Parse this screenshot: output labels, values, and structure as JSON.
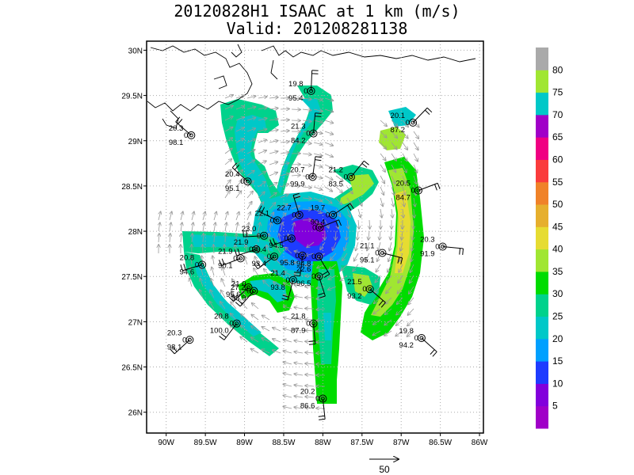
{
  "title_line1": "20120828H1 ISAAC at 1 km (m/s)",
  "title_line2": "Valid: 201208281138",
  "axes": {
    "x_ticks": [
      "90W",
      "89.5W",
      "89W",
      "88.5W",
      "88W",
      "87.5W",
      "87W",
      "86.5W",
      "86W"
    ],
    "x_values": [
      -90,
      -89.5,
      -89,
      -88.5,
      -88,
      -87.5,
      -87,
      -86.5,
      -86
    ],
    "y_ticks": [
      "30N",
      "29.5N",
      "29N",
      "28.5N",
      "28N",
      "27.5N",
      "27N",
      "26.5N",
      "26N"
    ],
    "y_values": [
      30,
      29.5,
      29,
      28.5,
      28,
      27.5,
      27,
      26.5,
      26
    ],
    "lon_range": [
      -90.25,
      -85.95
    ],
    "lat_range": [
      25.77,
      30.1
    ],
    "grid": "dotted"
  },
  "colorbar": {
    "labels": [
      "5",
      "10",
      "15",
      "20",
      "25",
      "30",
      "35",
      "40",
      "45",
      "50",
      "55",
      "60",
      "65",
      "70",
      "75",
      "80"
    ],
    "colors": [
      "#a000c8",
      "#8200dc",
      "#1e3cff",
      "#00a0ff",
      "#00c8c8",
      "#00d28c",
      "#00dc00",
      "#a0e632",
      "#e6dc32",
      "#e6af2d",
      "#f08228",
      "#fa3c3c",
      "#f00082",
      "#a000c8",
      "#00c8c8",
      "#a0e632",
      "#aaaaaa"
    ]
  },
  "reference_vector": {
    "label": "50"
  },
  "stations": [
    {
      "lon": -88.15,
      "lat": 29.55,
      "top": "19.8",
      "mid": "0",
      "bot": "95.4"
    },
    {
      "lon": -88.12,
      "lat": 29.08,
      "top": "21.3",
      "mid": "0",
      "bot": "84.2"
    },
    {
      "lon": -89.68,
      "lat": 29.06,
      "top": "20.3",
      "mid": "0",
      "bot": "98.1"
    },
    {
      "lon": -86.85,
      "lat": 29.2,
      "top": "20.1",
      "mid": "0",
      "bot": "87.2"
    },
    {
      "lon": -88.13,
      "lat": 28.6,
      "top": "20.7",
      "mid": "0",
      "bot": "99.9"
    },
    {
      "lon": -87.64,
      "lat": 28.6,
      "top": "21.2",
      "mid": "0",
      "bot": "83.5"
    },
    {
      "lon": -88.96,
      "lat": 28.55,
      "top": "20.4",
      "mid": "0",
      "bot": "95.1"
    },
    {
      "lon": -86.78,
      "lat": 28.45,
      "top": "20.5",
      "mid": "0",
      "bot": "84.7"
    },
    {
      "lon": -88.3,
      "lat": 28.18,
      "top": "22.7",
      "mid": "0",
      "bot": ""
    },
    {
      "lon": -87.87,
      "lat": 28.18,
      "top": "19.7",
      "mid": "0",
      "bot": "90.4"
    },
    {
      "lon": -88.58,
      "lat": 28.12,
      "top": "22.1",
      "mid": "0",
      "bot": ""
    },
    {
      "lon": -88.04,
      "lat": 28.04,
      "top": "",
      "mid": "0",
      "bot": ""
    },
    {
      "lon": -88.75,
      "lat": 27.95,
      "top": "23.0",
      "mid": "0",
      "bot": ""
    },
    {
      "lon": -88.4,
      "lat": 27.92,
      "top": "",
      "mid": "0",
      "bot": "94.5"
    },
    {
      "lon": -88.85,
      "lat": 27.8,
      "top": "21.9",
      "mid": "0",
      "bot": ""
    },
    {
      "lon": -89.05,
      "lat": 27.7,
      "top": "21.9",
      "mid": "0",
      "bot": "90.1"
    },
    {
      "lon": -88.62,
      "lat": 27.72,
      "top": "20.4",
      "mid": "0",
      "bot": "93.4"
    },
    {
      "lon": -88.26,
      "lat": 27.73,
      "top": "",
      "mid": "0",
      "bot": "95.8"
    },
    {
      "lon": -88.05,
      "lat": 27.72,
      "top": "",
      "mid": "0",
      "bot": "94.8"
    },
    {
      "lon": -87.24,
      "lat": 27.76,
      "top": "21.1",
      "mid": "0",
      "bot": "95.1"
    },
    {
      "lon": -86.47,
      "lat": 27.83,
      "top": "20.3",
      "mid": "0",
      "bot": "91.9"
    },
    {
      "lon": -89.54,
      "lat": 27.63,
      "top": "20.8",
      "mid": "0",
      "bot": "94.6"
    },
    {
      "lon": -88.38,
      "lat": 27.46,
      "top": "21.4",
      "mid": "0",
      "bot": "93.8"
    },
    {
      "lon": -88.05,
      "lat": 27.5,
      "top": "22.6",
      "mid": "0",
      "bot": "96.5"
    },
    {
      "lon": -88.88,
      "lat": 27.34,
      "top": "21.0",
      "mid": "0",
      "bot": "95.9"
    },
    {
      "lon": -88.95,
      "lat": 27.38,
      "top": "",
      "mid": "27.2",
      "bot": "95.6"
    },
    {
      "lon": -87.4,
      "lat": 27.36,
      "top": "21.5",
      "mid": "0",
      "bot": "93.2"
    },
    {
      "lon": -89.1,
      "lat": 26.98,
      "top": "20.8",
      "mid": "0",
      "bot": "100.0"
    },
    {
      "lon": -88.12,
      "lat": 26.98,
      "top": "21.8",
      "mid": "0",
      "bot": "87.9"
    },
    {
      "lon": -89.7,
      "lat": 26.8,
      "top": "20.3",
      "mid": "0",
      "bot": "98.1"
    },
    {
      "lon": -86.74,
      "lat": 26.82,
      "top": "19.8",
      "mid": "0",
      "bot": "94.2"
    },
    {
      "lon": -88.0,
      "lat": 26.15,
      "top": "20.2",
      "mid": "0",
      "bot": "86.6"
    }
  ]
}
